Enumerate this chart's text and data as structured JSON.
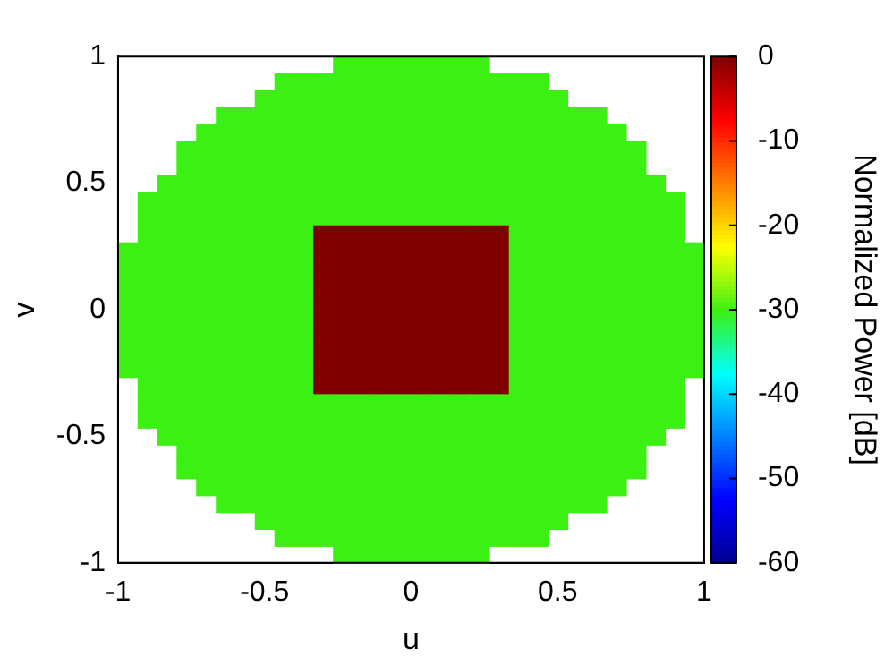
{
  "chart_data": {
    "type": "heatmap",
    "xlabel": "u",
    "ylabel": "v",
    "clabel": "Normalized Power [dB]",
    "x": [
      -0.967,
      -0.9,
      -0.833,
      -0.767,
      -0.7,
      -0.633,
      -0.567,
      -0.5,
      -0.433,
      -0.367,
      -0.3,
      -0.233,
      -0.167,
      -0.1,
      -0.033,
      0.033,
      0.1,
      0.167,
      0.233,
      0.3,
      0.367,
      0.433,
      0.5,
      0.567,
      0.633,
      0.7,
      0.767,
      0.833,
      0.9,
      0.967
    ],
    "y": [
      0.967,
      0.9,
      0.833,
      0.767,
      0.7,
      0.633,
      0.567,
      0.5,
      0.433,
      0.367,
      0.3,
      0.233,
      0.167,
      0.1,
      0.033,
      -0.033,
      -0.1,
      -0.167,
      -0.233,
      -0.3,
      -0.367,
      -0.433,
      -0.5,
      -0.567,
      -0.633,
      -0.7,
      -0.767,
      -0.833,
      -0.9,
      -0.967
    ],
    "xlim": [
      -1,
      1
    ],
    "xticks": [
      -1,
      -0.5,
      0,
      0.5,
      1
    ],
    "ylim": [
      -1,
      1
    ],
    "yticks": [
      -1,
      -0.5,
      0,
      0.5,
      1
    ],
    "clim": [
      -60,
      0
    ],
    "cticks": [
      -60,
      -50,
      -40,
      -30,
      -20,
      -10,
      0
    ],
    "cells": [
      [
        null,
        null,
        null,
        null,
        null,
        null,
        null,
        null,
        null,
        null,
        null,
        -30,
        -30,
        -30,
        -30,
        -30,
        -30,
        -30,
        -30,
        null,
        null,
        null,
        null,
        null,
        null,
        null,
        null,
        null,
        null,
        null
      ],
      [
        null,
        null,
        null,
        null,
        null,
        null,
        null,
        null,
        -30,
        -30,
        -30,
        -30,
        -30,
        -30,
        -30,
        -30,
        -30,
        -30,
        -30,
        -30,
        -30,
        -30,
        null,
        null,
        null,
        null,
        null,
        null,
        null,
        null
      ],
      [
        null,
        null,
        null,
        null,
        null,
        null,
        null,
        -30,
        -30,
        -30,
        -30,
        -30,
        -30,
        -30,
        -30,
        -30,
        -30,
        -30,
        -30,
        -30,
        -30,
        -30,
        -30,
        null,
        null,
        null,
        null,
        null,
        null,
        null
      ],
      [
        null,
        null,
        null,
        null,
        null,
        -30,
        -30,
        -30,
        -30,
        -30,
        -30,
        -30,
        -30,
        -30,
        -30,
        -30,
        -30,
        -30,
        -30,
        -30,
        -30,
        -30,
        -30,
        -30,
        -30,
        null,
        null,
        null,
        null,
        null
      ],
      [
        null,
        null,
        null,
        null,
        -30,
        -30,
        -30,
        -30,
        -30,
        -30,
        -30,
        -30,
        -30,
        -30,
        -30,
        -30,
        -30,
        -30,
        -30,
        -30,
        -30,
        -30,
        -30,
        -30,
        -30,
        -30,
        null,
        null,
        null,
        null
      ],
      [
        null,
        null,
        null,
        -30,
        -30,
        -30,
        -30,
        -30,
        -30,
        -30,
        -30,
        -30,
        -30,
        -30,
        -30,
        -30,
        -30,
        -30,
        -30,
        -30,
        -30,
        -30,
        -30,
        -30,
        -30,
        -30,
        -30,
        null,
        null,
        null
      ],
      [
        null,
        null,
        null,
        -30,
        -30,
        -30,
        -30,
        -30,
        -30,
        -30,
        -30,
        -30,
        -30,
        -30,
        -30,
        -30,
        -30,
        -30,
        -30,
        -30,
        -30,
        -30,
        -30,
        -30,
        -30,
        -30,
        -30,
        null,
        null,
        null
      ],
      [
        null,
        null,
        -30,
        -30,
        -30,
        -30,
        -30,
        -30,
        -30,
        -30,
        -30,
        -30,
        -30,
        -30,
        -30,
        -30,
        -30,
        -30,
        -30,
        -30,
        -30,
        -30,
        -30,
        -30,
        -30,
        -30,
        -30,
        -30,
        null,
        null
      ],
      [
        null,
        -30,
        -30,
        -30,
        -30,
        -30,
        -30,
        -30,
        -30,
        -30,
        -30,
        -30,
        -30,
        -30,
        -30,
        -30,
        -30,
        -30,
        -30,
        -30,
        -30,
        -30,
        -30,
        -30,
        -30,
        -30,
        -30,
        -30,
        -30,
        null
      ],
      [
        null,
        -30,
        -30,
        -30,
        -30,
        -30,
        -30,
        -30,
        -30,
        -30,
        -30,
        -30,
        -30,
        -30,
        -30,
        -30,
        -30,
        -30,
        -30,
        -30,
        -30,
        -30,
        -30,
        -30,
        -30,
        -30,
        -30,
        -30,
        -30,
        null
      ],
      [
        null,
        -30,
        -30,
        -30,
        -30,
        -30,
        -30,
        -30,
        -30,
        -30,
        0,
        0,
        0,
        0,
        0,
        0,
        0,
        0,
        0,
        0,
        -30,
        -30,
        -30,
        -30,
        -30,
        -30,
        -30,
        -30,
        -30,
        null
      ],
      [
        -30,
        -30,
        -30,
        -30,
        -30,
        -30,
        -30,
        -30,
        -30,
        -30,
        0,
        0,
        0,
        0,
        0,
        0,
        0,
        0,
        0,
        0,
        -30,
        -30,
        -30,
        -30,
        -30,
        -30,
        -30,
        -30,
        -30,
        -30
      ],
      [
        -30,
        -30,
        -30,
        -30,
        -30,
        -30,
        -30,
        -30,
        -30,
        -30,
        0,
        0,
        0,
        0,
        0,
        0,
        0,
        0,
        0,
        0,
        -30,
        -30,
        -30,
        -30,
        -30,
        -30,
        -30,
        -30,
        -30,
        -30
      ],
      [
        -30,
        -30,
        -30,
        -30,
        -30,
        -30,
        -30,
        -30,
        -30,
        -30,
        0,
        0,
        0,
        0,
        0,
        0,
        0,
        0,
        0,
        0,
        -30,
        -30,
        -30,
        -30,
        -30,
        -30,
        -30,
        -30,
        -30,
        -30
      ],
      [
        -30,
        -30,
        -30,
        -30,
        -30,
        -30,
        -30,
        -30,
        -30,
        -30,
        0,
        0,
        0,
        0,
        0,
        0,
        0,
        0,
        0,
        0,
        -30,
        -30,
        -30,
        -30,
        -30,
        -30,
        -30,
        -30,
        -30,
        -30
      ],
      [
        -30,
        -30,
        -30,
        -30,
        -30,
        -30,
        -30,
        -30,
        -30,
        -30,
        0,
        0,
        0,
        0,
        0,
        0,
        0,
        0,
        0,
        0,
        -30,
        -30,
        -30,
        -30,
        -30,
        -30,
        -30,
        -30,
        -30,
        -30
      ],
      [
        -30,
        -30,
        -30,
        -30,
        -30,
        -30,
        -30,
        -30,
        -30,
        -30,
        0,
        0,
        0,
        0,
        0,
        0,
        0,
        0,
        0,
        0,
        -30,
        -30,
        -30,
        -30,
        -30,
        -30,
        -30,
        -30,
        -30,
        -30
      ],
      [
        -30,
        -30,
        -30,
        -30,
        -30,
        -30,
        -30,
        -30,
        -30,
        -30,
        0,
        0,
        0,
        0,
        0,
        0,
        0,
        0,
        0,
        0,
        -30,
        -30,
        -30,
        -30,
        -30,
        -30,
        -30,
        -30,
        -30,
        -30
      ],
      [
        -30,
        -30,
        -30,
        -30,
        -30,
        -30,
        -30,
        -30,
        -30,
        -30,
        0,
        0,
        0,
        0,
        0,
        0,
        0,
        0,
        0,
        0,
        -30,
        -30,
        -30,
        -30,
        -30,
        -30,
        -30,
        -30,
        -30,
        -30
      ],
      [
        null,
        -30,
        -30,
        -30,
        -30,
        -30,
        -30,
        -30,
        -30,
        -30,
        0,
        0,
        0,
        0,
        0,
        0,
        0,
        0,
        0,
        0,
        -30,
        -30,
        -30,
        -30,
        -30,
        -30,
        -30,
        -30,
        -30,
        null
      ],
      [
        null,
        -30,
        -30,
        -30,
        -30,
        -30,
        -30,
        -30,
        -30,
        -30,
        -30,
        -30,
        -30,
        -30,
        -30,
        -30,
        -30,
        -30,
        -30,
        -30,
        -30,
        -30,
        -30,
        -30,
        -30,
        -30,
        -30,
        -30,
        -30,
        null
      ],
      [
        null,
        -30,
        -30,
        -30,
        -30,
        -30,
        -30,
        -30,
        -30,
        -30,
        -30,
        -30,
        -30,
        -30,
        -30,
        -30,
        -30,
        -30,
        -30,
        -30,
        -30,
        -30,
        -30,
        -30,
        -30,
        -30,
        -30,
        -30,
        -30,
        null
      ],
      [
        null,
        null,
        -30,
        -30,
        -30,
        -30,
        -30,
        -30,
        -30,
        -30,
        -30,
        -30,
        -30,
        -30,
        -30,
        -30,
        -30,
        -30,
        -30,
        -30,
        -30,
        -30,
        -30,
        -30,
        -30,
        -30,
        -30,
        -30,
        null,
        null
      ],
      [
        null,
        null,
        null,
        -30,
        -30,
        -30,
        -30,
        -30,
        -30,
        -30,
        -30,
        -30,
        -30,
        -30,
        -30,
        -30,
        -30,
        -30,
        -30,
        -30,
        -30,
        -30,
        -30,
        -30,
        -30,
        -30,
        -30,
        null,
        null,
        null
      ],
      [
        null,
        null,
        null,
        -30,
        -30,
        -30,
        -30,
        -30,
        -30,
        -30,
        -30,
        -30,
        -30,
        -30,
        -30,
        -30,
        -30,
        -30,
        -30,
        -30,
        -30,
        -30,
        -30,
        -30,
        -30,
        -30,
        -30,
        null,
        null,
        null
      ],
      [
        null,
        null,
        null,
        null,
        -30,
        -30,
        -30,
        -30,
        -30,
        -30,
        -30,
        -30,
        -30,
        -30,
        -30,
        -30,
        -30,
        -30,
        -30,
        -30,
        -30,
        -30,
        -30,
        -30,
        -30,
        -30,
        null,
        null,
        null,
        null
      ],
      [
        null,
        null,
        null,
        null,
        null,
        -30,
        -30,
        -30,
        -30,
        -30,
        -30,
        -30,
        -30,
        -30,
        -30,
        -30,
        -30,
        -30,
        -30,
        -30,
        -30,
        -30,
        -30,
        -30,
        -30,
        null,
        null,
        null,
        null,
        null
      ],
      [
        null,
        null,
        null,
        null,
        null,
        null,
        null,
        -30,
        -30,
        -30,
        -30,
        -30,
        -30,
        -30,
        -30,
        -30,
        -30,
        -30,
        -30,
        -30,
        -30,
        -30,
        -30,
        null,
        null,
        null,
        null,
        null,
        null,
        null
      ],
      [
        null,
        null,
        null,
        null,
        null,
        null,
        null,
        null,
        -30,
        -30,
        -30,
        -30,
        -30,
        -30,
        -30,
        -30,
        -30,
        -30,
        -30,
        -30,
        -30,
        -30,
        null,
        null,
        null,
        null,
        null,
        null,
        null,
        null
      ],
      [
        null,
        null,
        null,
        null,
        null,
        null,
        null,
        null,
        null,
        null,
        null,
        -30,
        -30,
        -30,
        -30,
        -30,
        -30,
        -30,
        -30,
        null,
        null,
        null,
        null,
        null,
        null,
        null,
        null,
        null,
        null,
        null
      ]
    ]
  }
}
